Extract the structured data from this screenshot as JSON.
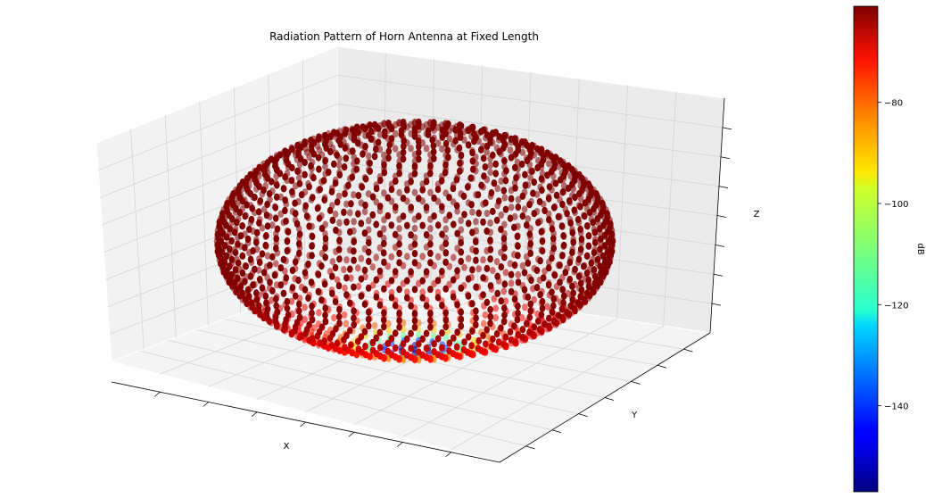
{
  "chart_data": {
    "type": "scatter",
    "projection": "3d",
    "title": "Radiation Pattern of Horn Antenna at Fixed Length",
    "xlabel": "X",
    "ylabel": "Y",
    "zlabel": "Z",
    "shape": "oblate spheroid of points colored by dB",
    "grid": true,
    "axis_tick_labels_shown": false,
    "colorbar": {
      "label": "dB",
      "colormap": "jet",
      "range": [
        -157,
        -61
      ],
      "ticks": [
        -80,
        -100,
        -120,
        -140
      ],
      "tick_labels": [
        "−80",
        "−100",
        "−120",
        "−140"
      ]
    },
    "value_distribution": {
      "max_dB": -61,
      "min_dB": -157,
      "minimum_location": "bottom pole",
      "note": "values near maximum over most of the surface, dropping toward the bottom pole"
    }
  },
  "colors": {
    "pane_background": "#f2f2f2",
    "pane_side": "#e9e9e9",
    "grid_line": "#d3d3d3",
    "axis_line": "#000000"
  }
}
